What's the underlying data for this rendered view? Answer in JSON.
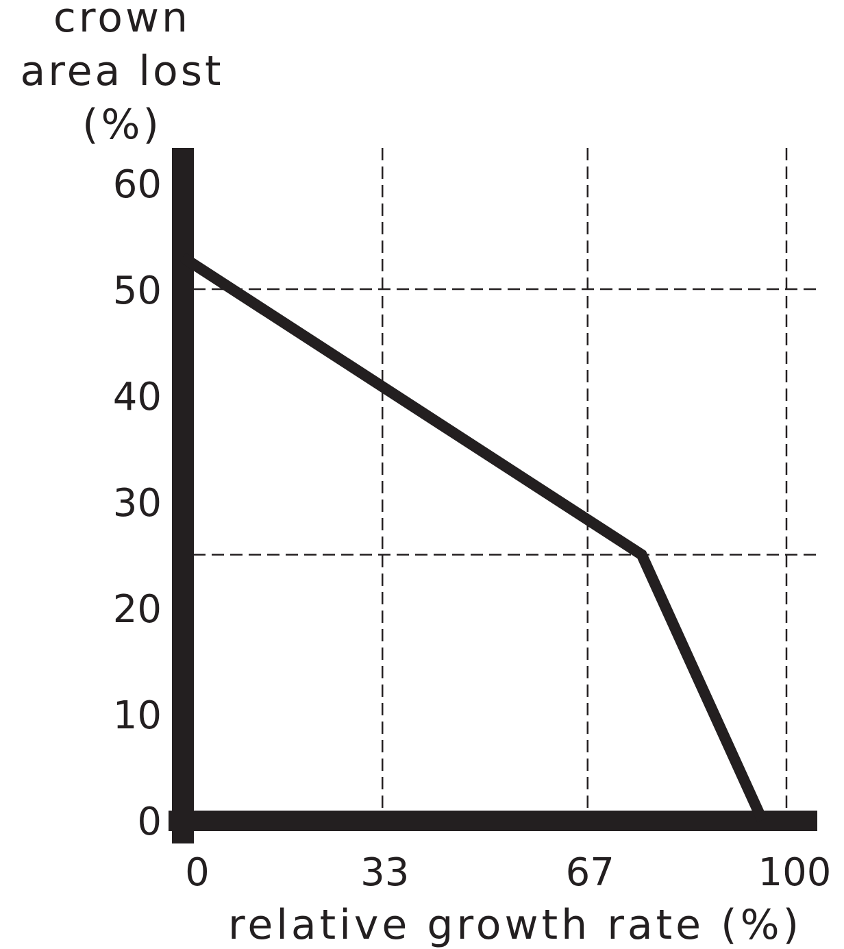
{
  "chart_data": {
    "type": "line",
    "title": "",
    "ylabel_lines": [
      "crown",
      "area  lost",
      "(%)"
    ],
    "xlabel": "relative  growth  rate (%)",
    "x_ticks": [
      "0",
      "33",
      "67",
      "100"
    ],
    "y_ticks": [
      "0",
      "10",
      "20",
      "30",
      "40",
      "50",
      "60"
    ],
    "xlim": [
      0,
      100
    ],
    "ylim": [
      0,
      60
    ],
    "grid": {
      "vertical_dashed_at_x": [
        33,
        67,
        100
      ],
      "horizontal_dashed_at_y": [
        50,
        25
      ]
    },
    "series": [
      {
        "x": [
          0,
          76,
          96
        ],
        "y": [
          53,
          25,
          0
        ]
      }
    ],
    "colors": {
      "ink": "#231f20",
      "background": "#ffffff"
    }
  }
}
